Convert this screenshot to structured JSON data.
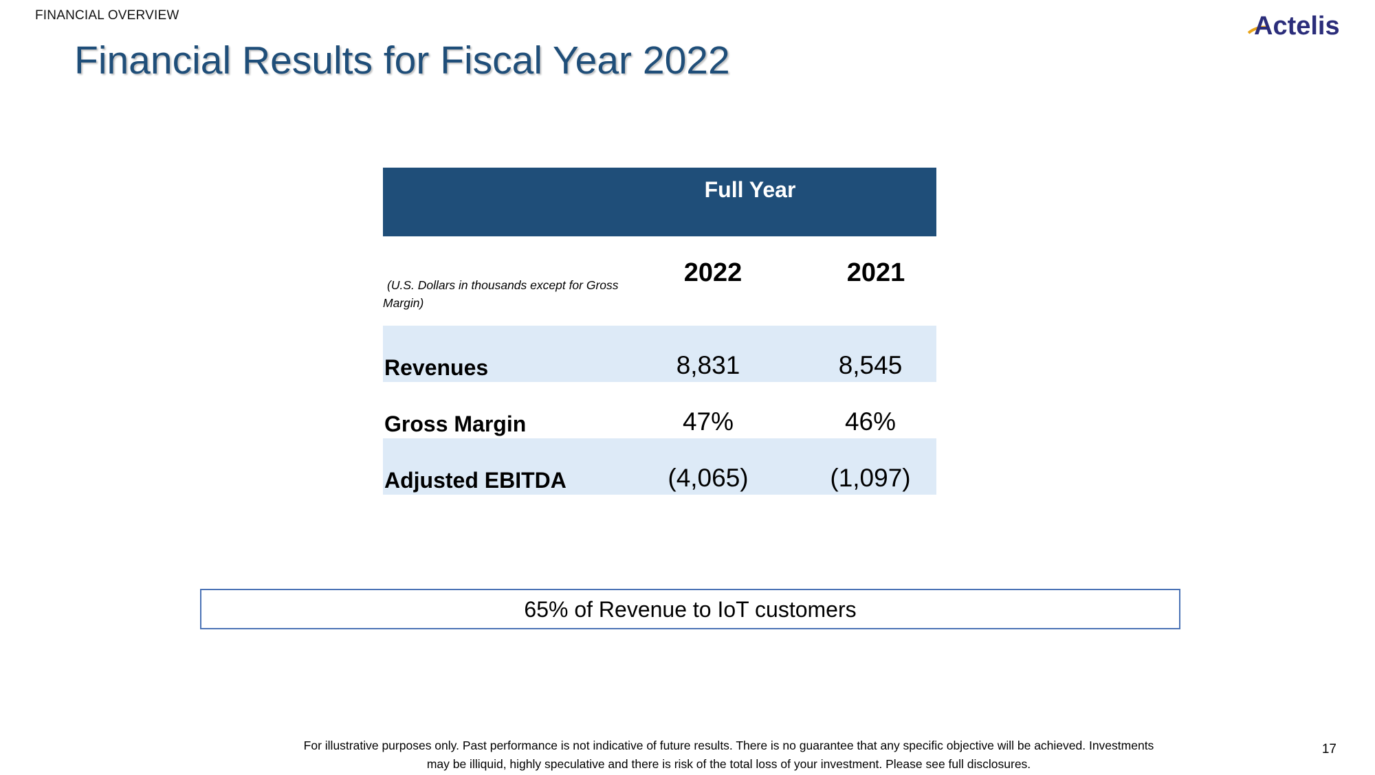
{
  "header": {
    "section_label": "FINANCIAL OVERVIEW",
    "logo_text": "Actelis"
  },
  "title": "Financial Results for Fiscal Year 2022",
  "table": {
    "header_label": "Full Year",
    "unit_note": "(U.S. Dollars in thousands except for Gross Margin)",
    "columns": [
      "2022",
      "2021"
    ],
    "rows": [
      {
        "label": "Revenues",
        "v2022": "8,831",
        "v2021": "8,545"
      },
      {
        "label": "Gross Margin",
        "v2022": "47%",
        "v2021": "46%"
      },
      {
        "label": "Adjusted EBITDA",
        "v2022": "(4,065)",
        "v2021": "(1,097)"
      }
    ]
  },
  "callout": "65% of Revenue to IoT customers",
  "disclaimer": "For illustrative purposes only. Past performance is not indicative of future results.  There is no guarantee that any specific objective will be achieved.  Investments may be illiquid, highly speculative and there is risk of the total loss of your investment.  Please see full disclosures.",
  "page_number": "17",
  "colors": {
    "title": "#1f4e79",
    "table_header_bg": "#1f4e79",
    "row_shade": "#ddeaf7",
    "callout_border": "#4a72b5",
    "logo_accent": "#e8a317",
    "logo_text": "#2b2d7a"
  }
}
